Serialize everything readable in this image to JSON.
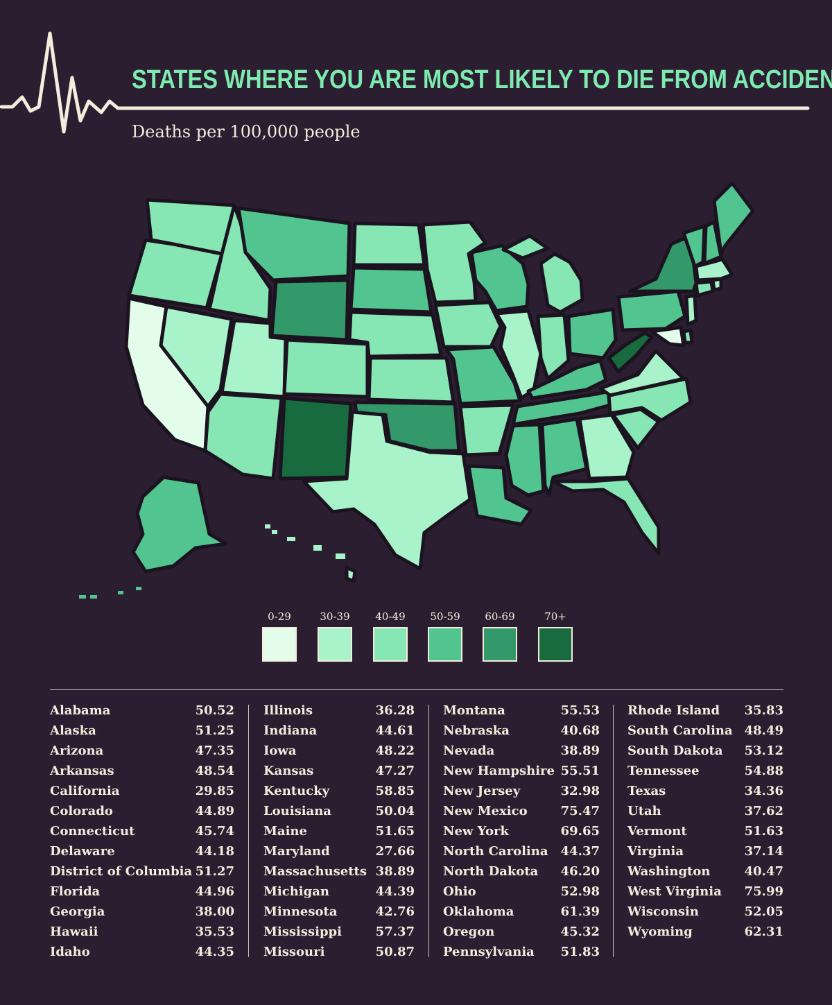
{
  "title": "STATES WHERE YOU ARE MOST LIKELY TO DIE FROM ACCIDENTS",
  "subtitle": "Deaths per 100,000 people",
  "legend": [
    {
      "label": "0-29",
      "color": "#e4fdea"
    },
    {
      "label": "30-39",
      "color": "#a8f3c9"
    },
    {
      "label": "40-49",
      "color": "#86e6b4"
    },
    {
      "label": "50-59",
      "color": "#52c48f"
    },
    {
      "label": "60-69",
      "color": "#33996a"
    },
    {
      "label": "70+",
      "color": "#176b3f"
    }
  ],
  "states": [
    {
      "name": "Alabama",
      "value": "50.52"
    },
    {
      "name": "Alaska",
      "value": "51.25"
    },
    {
      "name": "Arizona",
      "value": "47.35"
    },
    {
      "name": "Arkansas",
      "value": "48.54"
    },
    {
      "name": "California",
      "value": "29.85"
    },
    {
      "name": "Colorado",
      "value": "44.89"
    },
    {
      "name": "Connecticut",
      "value": "45.74"
    },
    {
      "name": "Delaware",
      "value": "44.18"
    },
    {
      "name": "District of Columbia",
      "value": "51.27"
    },
    {
      "name": "Florida",
      "value": "44.96"
    },
    {
      "name": "Georgia",
      "value": "38.00"
    },
    {
      "name": "Hawaii",
      "value": "35.53"
    },
    {
      "name": "Idaho",
      "value": "44.35"
    },
    {
      "name": "Illinois",
      "value": "36.28"
    },
    {
      "name": "Indiana",
      "value": "44.61"
    },
    {
      "name": "Iowa",
      "value": "48.22"
    },
    {
      "name": "Kansas",
      "value": "47.27"
    },
    {
      "name": "Kentucky",
      "value": "58.85"
    },
    {
      "name": "Louisiana",
      "value": "50.04"
    },
    {
      "name": "Maine",
      "value": "51.65"
    },
    {
      "name": "Maryland",
      "value": "27.66"
    },
    {
      "name": "Massachusetts",
      "value": "38.89"
    },
    {
      "name": "Michigan",
      "value": "44.39"
    },
    {
      "name": "Minnesota",
      "value": "42.76"
    },
    {
      "name": "Mississippi",
      "value": "57.37"
    },
    {
      "name": "Missouri",
      "value": "50.87"
    },
    {
      "name": "Montana",
      "value": "55.53"
    },
    {
      "name": "Nebraska",
      "value": "40.68"
    },
    {
      "name": "Nevada",
      "value": "38.89"
    },
    {
      "name": "New Hampshire",
      "value": "55.51"
    },
    {
      "name": "New Jersey",
      "value": "32.98"
    },
    {
      "name": "New Mexico",
      "value": "75.47"
    },
    {
      "name": "New York",
      "value": "69.65"
    },
    {
      "name": "North Carolina",
      "value": "44.37"
    },
    {
      "name": "North Dakota",
      "value": "46.20"
    },
    {
      "name": "Ohio",
      "value": "52.98"
    },
    {
      "name": "Oklahoma",
      "value": "61.39"
    },
    {
      "name": "Oregon",
      "value": "45.32"
    },
    {
      "name": "Pennsylvania",
      "value": "51.83"
    },
    {
      "name": "Rhode Island",
      "value": "35.83"
    },
    {
      "name": "South Carolina",
      "value": "48.49"
    },
    {
      "name": "South Dakota",
      "value": "53.12"
    },
    {
      "name": "Tennessee",
      "value": "54.88"
    },
    {
      "name": "Texas",
      "value": "34.36"
    },
    {
      "name": "Utah",
      "value": "37.62"
    },
    {
      "name": "Vermont",
      "value": "51.63"
    },
    {
      "name": "Virginia",
      "value": "37.14"
    },
    {
      "name": "Washington",
      "value": "40.47"
    },
    {
      "name": "West Virginia",
      "value": "75.99"
    },
    {
      "name": "Wisconsin",
      "value": "52.05"
    },
    {
      "name": "Wyoming",
      "value": "62.31"
    }
  ],
  "map_fill": {
    "Washington": "#86e6b4",
    "Oregon": "#86e6b4",
    "California": "#e4fdea",
    "Idaho": "#86e6b4",
    "Nevada": "#a8f3c9",
    "Montana": "#52c48f",
    "Wyoming": "#33996a",
    "Utah": "#a8f3c9",
    "Arizona": "#86e6b4",
    "Colorado": "#86e6b4",
    "New Mexico": "#176b3f",
    "North Dakota": "#86e6b4",
    "South Dakota": "#52c48f",
    "Nebraska": "#86e6b4",
    "Kansas": "#86e6b4",
    "Oklahoma": "#33996a",
    "Texas": "#a8f3c9",
    "Minnesota": "#86e6b4",
    "Iowa": "#86e6b4",
    "Missouri": "#52c48f",
    "Arkansas": "#86e6b4",
    "Louisiana": "#52c48f",
    "Wisconsin": "#52c48f",
    "Illinois": "#a8f3c9",
    "Michigan": "#86e6b4",
    "Indiana": "#86e6b4",
    "Ohio": "#52c48f",
    "Kentucky": "#52c48f",
    "Tennessee": "#52c48f",
    "Mississippi": "#52c48f",
    "Alabama": "#52c48f",
    "Georgia": "#a8f3c9",
    "Florida": "#86e6b4",
    "South Carolina": "#86e6b4",
    "North Carolina": "#86e6b4",
    "Virginia": "#a8f3c9",
    "West Virginia": "#176b3f",
    "Pennsylvania": "#52c48f",
    "New York": "#33996a",
    "Vermont": "#52c48f",
    "New Hampshire": "#52c48f",
    "Maine": "#52c48f",
    "Massachusetts": "#a8f3c9",
    "Rhode Island": "#a8f3c9",
    "Connecticut": "#86e6b4",
    "New Jersey": "#a8f3c9",
    "Delaware": "#86e6b4",
    "Maryland": "#e4fdea",
    "Alaska": "#52c48f",
    "Hawaii": "#a8f3c9"
  }
}
